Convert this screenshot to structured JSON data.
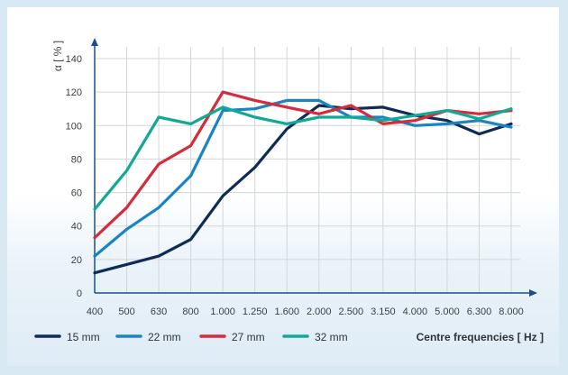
{
  "chart_data": {
    "type": "line",
    "ylabel": "α [ % ]",
    "xlabel": "Centre frequencies [ Hz ]",
    "categories": [
      "400",
      "500",
      "630",
      "800",
      "1.000",
      "1.250",
      "1.600",
      "2.000",
      "2.500",
      "3.150",
      "4.000",
      "5.000",
      "6.300",
      "8.000"
    ],
    "yticks": [
      0,
      20,
      40,
      60,
      80,
      100,
      120,
      140
    ],
    "ylim": [
      0,
      150
    ],
    "grid": true,
    "legend_position": "bottom",
    "series": [
      {
        "name": "15 mm",
        "color": "#0e2c55",
        "values": [
          12,
          17,
          22,
          32,
          58,
          75,
          98,
          112,
          110,
          111,
          106,
          103,
          95,
          101
        ]
      },
      {
        "name": "22 mm",
        "color": "#1c83c2",
        "values": [
          22,
          38,
          51,
          70,
          109,
          110,
          115,
          115,
          105,
          105,
          100,
          101,
          103,
          99
        ]
      },
      {
        "name": "27 mm",
        "color": "#d52b3a",
        "values": [
          33,
          51,
          77,
          88,
          120,
          115,
          111,
          107,
          112,
          101,
          103,
          109,
          107,
          109
        ]
      },
      {
        "name": "32 mm",
        "color": "#11a995",
        "values": [
          50,
          73,
          105,
          101,
          111,
          105,
          101,
          105,
          105,
          103,
          106,
          109,
          104,
          110
        ]
      }
    ]
  }
}
